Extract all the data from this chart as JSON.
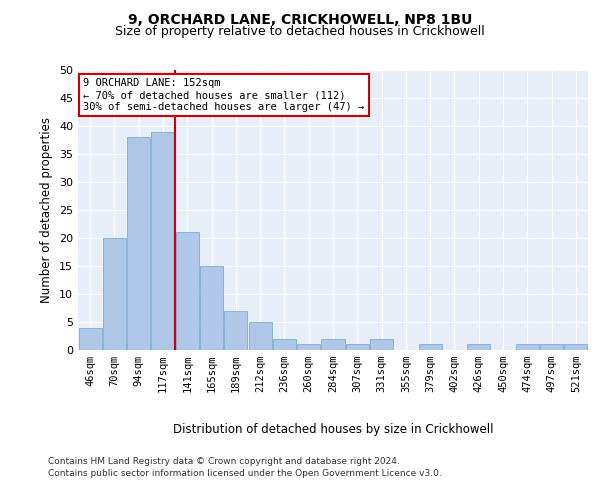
{
  "title1": "9, ORCHARD LANE, CRICKHOWELL, NP8 1BU",
  "title2": "Size of property relative to detached houses in Crickhowell",
  "xlabel": "Distribution of detached houses by size in Crickhowell",
  "ylabel": "Number of detached properties",
  "categories": [
    "46sqm",
    "70sqm",
    "94sqm",
    "117sqm",
    "141sqm",
    "165sqm",
    "189sqm",
    "212sqm",
    "236sqm",
    "260sqm",
    "284sqm",
    "307sqm",
    "331sqm",
    "355sqm",
    "379sqm",
    "402sqm",
    "426sqm",
    "450sqm",
    "474sqm",
    "497sqm",
    "521sqm"
  ],
  "values": [
    4,
    20,
    38,
    39,
    21,
    15,
    7,
    5,
    2,
    1,
    2,
    1,
    2,
    0,
    1,
    0,
    1,
    0,
    1,
    1,
    1
  ],
  "bar_color": "#aec6e8",
  "bar_edge_color": "#7bafd4",
  "background_color": "#e8eef8",
  "grid_color": "#ffffff",
  "vline_x_index": 4,
  "vline_color": "#cc0000",
  "annotation_lines": [
    "9 ORCHARD LANE: 152sqm",
    "← 70% of detached houses are smaller (112)",
    "30% of semi-detached houses are larger (47) →"
  ],
  "annotation_box_color": "#cc0000",
  "ylim": [
    0,
    50
  ],
  "yticks": [
    0,
    5,
    10,
    15,
    20,
    25,
    30,
    35,
    40,
    45,
    50
  ],
  "footer1": "Contains HM Land Registry data © Crown copyright and database right 2024.",
  "footer2": "Contains public sector information licensed under the Open Government Licence v3.0."
}
